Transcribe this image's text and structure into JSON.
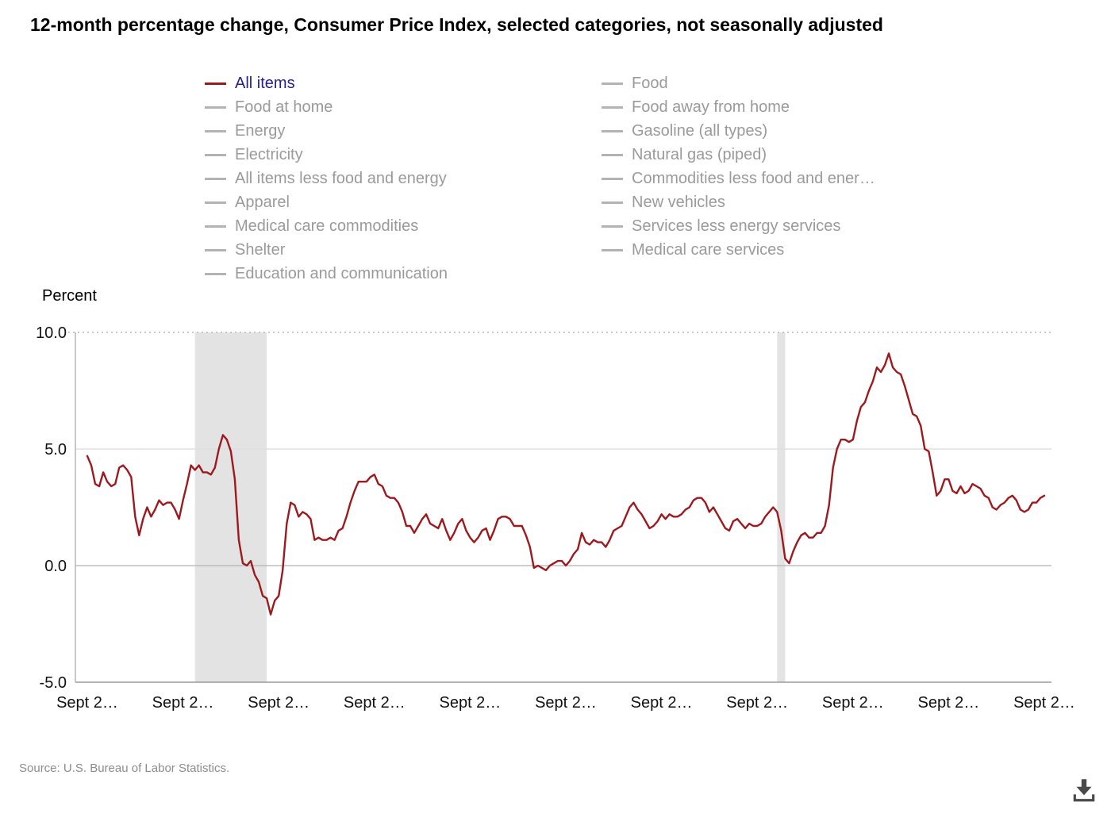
{
  "title": "12-month percentage change, Consumer Price Index, selected categories, not seasonally adjusted",
  "y_axis_title": "Percent",
  "source": "Source: U.S. Bureau of Labor Statistics.",
  "colors": {
    "line": "#9c1a1e",
    "active_label": "#221f8f",
    "inactive_label": "#9a9a9a",
    "inactive_swatch": "#b3b3b3",
    "recession_band": "#e3e3e3"
  },
  "legend": {
    "column1": [
      {
        "label": "All items",
        "active": true
      },
      {
        "label": "Food at home",
        "active": false
      },
      {
        "label": "Energy",
        "active": false
      },
      {
        "label": "Electricity",
        "active": false
      },
      {
        "label": "All items less food and energy",
        "active": false
      },
      {
        "label": "Apparel",
        "active": false
      },
      {
        "label": "Medical care commodities",
        "active": false
      },
      {
        "label": "Shelter",
        "active": false
      },
      {
        "label": "Education and communication",
        "active": false
      }
    ],
    "column2": [
      {
        "label": "Food",
        "active": false
      },
      {
        "label": "Food away from home",
        "active": false
      },
      {
        "label": "Gasoline (all types)",
        "active": false
      },
      {
        "label": "Natural gas (piped)",
        "active": false
      },
      {
        "label": "Commodities less food and ener…",
        "active": false
      },
      {
        "label": "New vehicles",
        "active": false
      },
      {
        "label": "Services less energy services",
        "active": false
      },
      {
        "label": "Medical care services",
        "active": false
      }
    ]
  },
  "chart_data": {
    "type": "line",
    "title": "12-month percentage change, Consumer Price Index, selected categories, not seasonally adjusted",
    "xlabel": "",
    "ylabel": "Percent",
    "ylim": [
      -5,
      10
    ],
    "y_ticks": [
      "10.0",
      "5.0",
      "0.0",
      "-5.0"
    ],
    "x_tick_labels": [
      "Sept 2…",
      "Sept 2…",
      "Sept 2…",
      "Sept 2…",
      "Sept 2…",
      "Sept 2…",
      "Sept 2…",
      "Sept 2…",
      "Sept 2…",
      "Sept 2…",
      "Sept 2…"
    ],
    "x_tick_every_months": 24,
    "x_range_estimated": {
      "first": "2005-09",
      "last": "2025-09"
    },
    "grid": "horizontal-only",
    "legend_position": "top",
    "recession_bands": [
      {
        "start_index": 27,
        "end_index": 45
      },
      {
        "start_index": 173,
        "end_index": 175
      }
    ],
    "series": [
      {
        "name": "All items",
        "frequency": "monthly",
        "values": [
          4.7,
          4.3,
          3.5,
          3.4,
          4.0,
          3.6,
          3.4,
          3.5,
          4.2,
          4.3,
          4.1,
          3.8,
          2.1,
          1.3,
          2.0,
          2.5,
          2.1,
          2.4,
          2.8,
          2.6,
          2.7,
          2.7,
          2.4,
          2.0,
          2.8,
          3.5,
          4.3,
          4.1,
          4.3,
          4.0,
          4.0,
          3.9,
          4.2,
          5.0,
          5.6,
          5.4,
          4.9,
          3.7,
          1.1,
          0.1,
          0.0,
          0.2,
          -0.4,
          -0.7,
          -1.3,
          -1.4,
          -2.1,
          -1.5,
          -1.3,
          -0.2,
          1.8,
          2.7,
          2.6,
          2.1,
          2.3,
          2.2,
          2.0,
          1.1,
          1.2,
          1.1,
          1.1,
          1.2,
          1.1,
          1.5,
          1.6,
          2.1,
          2.7,
          3.2,
          3.6,
          3.6,
          3.6,
          3.8,
          3.9,
          3.5,
          3.4,
          3.0,
          2.9,
          2.9,
          2.7,
          2.3,
          1.7,
          1.7,
          1.4,
          1.7,
          2.0,
          2.2,
          1.8,
          1.7,
          1.6,
          2.0,
          1.5,
          1.1,
          1.4,
          1.8,
          2.0,
          1.5,
          1.2,
          1.0,
          1.2,
          1.5,
          1.6,
          1.1,
          1.5,
          2.0,
          2.1,
          2.1,
          2.0,
          1.7,
          1.7,
          1.7,
          1.3,
          0.8,
          -0.1,
          0.0,
          -0.1,
          -0.2,
          0.0,
          0.1,
          0.2,
          0.2,
          0.0,
          0.2,
          0.5,
          0.7,
          1.4,
          1.0,
          0.9,
          1.1,
          1.0,
          1.0,
          0.8,
          1.1,
          1.5,
          1.6,
          1.7,
          2.1,
          2.5,
          2.7,
          2.4,
          2.2,
          1.9,
          1.6,
          1.7,
          1.9,
          2.2,
          2.0,
          2.2,
          2.1,
          2.1,
          2.2,
          2.4,
          2.5,
          2.8,
          2.9,
          2.9,
          2.7,
          2.3,
          2.5,
          2.2,
          1.9,
          1.6,
          1.5,
          1.9,
          2.0,
          1.8,
          1.6,
          1.8,
          1.7,
          1.7,
          1.8,
          2.1,
          2.3,
          2.5,
          2.3,
          1.5,
          0.3,
          0.1,
          0.6,
          1.0,
          1.3,
          1.4,
          1.2,
          1.2,
          1.4,
          1.4,
          1.7,
          2.6,
          4.2,
          5.0,
          5.4,
          5.4,
          5.3,
          5.4,
          6.2,
          6.8,
          7.0,
          7.5,
          7.9,
          8.5,
          8.3,
          8.6,
          9.1,
          8.5,
          8.3,
          8.2,
          7.7,
          7.1,
          6.5,
          6.4,
          6.0,
          5.0,
          4.9,
          4.0,
          3.0,
          3.2,
          3.7,
          3.7,
          3.2,
          3.1,
          3.4,
          3.1,
          3.2,
          3.5,
          3.4,
          3.3,
          3.0,
          2.9,
          2.5,
          2.4,
          2.6,
          2.7,
          2.9,
          3.0,
          2.8,
          2.4,
          2.3,
          2.4,
          2.7,
          2.7,
          2.9,
          3.0
        ]
      }
    ]
  }
}
